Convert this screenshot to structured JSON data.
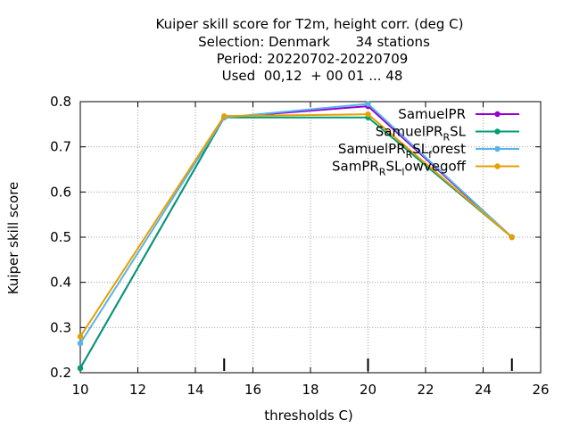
{
  "chart_data": {
    "type": "line",
    "title_lines": [
      "Kuiper skill score  for T2m, height corr. (deg C)",
      "Selection: Denmark      34 stations",
      "Period: 20220702-20220709",
      "Used  00,12  + 00 01 ... 48"
    ],
    "xlabel": "thresholds C)",
    "ylabel": "Kuiper skill score",
    "xlim": [
      10,
      26
    ],
    "ylim": [
      0.2,
      0.8
    ],
    "x_ticks": [
      "10",
      "12",
      "14",
      "16",
      "18",
      "20",
      "22",
      "24",
      "26"
    ],
    "y_ticks": [
      "0.2",
      "0.3",
      "0.4",
      "0.5",
      "0.6",
      "0.7",
      "0.8"
    ],
    "grid": true,
    "legend_position": "top-right",
    "sample_markers_x": [
      15,
      20,
      25
    ],
    "series": [
      {
        "name": "SamuelPR",
        "legend_main": "SamuelPR",
        "legend_sub": "",
        "legend_tail": "",
        "color": "#9400d3",
        "x": [
          10,
          15,
          20,
          25
        ],
        "values": [
          0.21,
          0.765,
          0.79,
          0.5
        ]
      },
      {
        "name": "SamuelPR_R SL",
        "legend_main": "SamuelPR",
        "legend_sub": "R",
        "legend_tail": "SL",
        "color": "#009e73",
        "x": [
          10,
          15,
          20,
          25
        ],
        "values": [
          0.21,
          0.765,
          0.765,
          0.5
        ]
      },
      {
        "name": "SamuelPR_R SL_f orest",
        "legend_main": "SamuelPR",
        "legend_sub": "R",
        "legend_tail": "SL",
        "legend_sub2": "f",
        "legend_tail2": "orest",
        "color": "#56b4e9",
        "x": [
          10,
          15,
          20,
          25
        ],
        "values": [
          0.265,
          0.765,
          0.795,
          0.5
        ]
      },
      {
        "name": "SamPR_R SL_l owvegoff",
        "legend_main": "SamPR",
        "legend_sub": "R",
        "legend_tail": "SL",
        "legend_sub2": "l",
        "legend_tail2": "owvegoff",
        "color": "#e69f00",
        "x": [
          10,
          15,
          20,
          25
        ],
        "values": [
          0.28,
          0.768,
          0.772,
          0.5
        ]
      }
    ]
  }
}
